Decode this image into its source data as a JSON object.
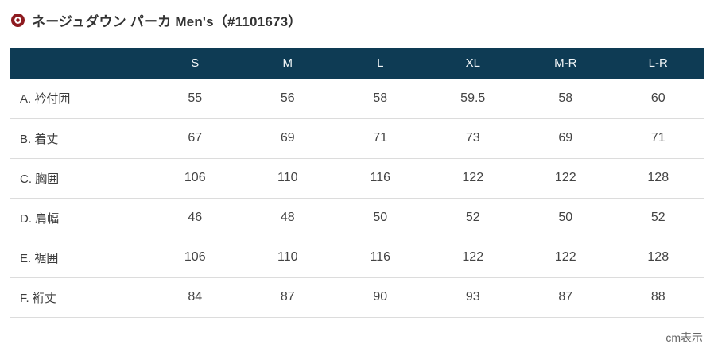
{
  "page": {
    "title": "ネージュダウン パーカ Men's（#1101673）",
    "unit_note": "cm表示"
  },
  "colors": {
    "header_bg": "#0e3b54",
    "header_text": "#f2f6f8",
    "accent_red": "#8e1b20",
    "row_border": "#dcdcdc",
    "body_text": "#444444"
  },
  "size_table": {
    "columns": [
      "S",
      "M",
      "L",
      "XL",
      "M-R",
      "L-R"
    ],
    "rows": [
      {
        "label": "A. 衿付囲",
        "values": [
          "55",
          "56",
          "58",
          "59.5",
          "58",
          "60"
        ]
      },
      {
        "label": "B. 着丈",
        "values": [
          "67",
          "69",
          "71",
          "73",
          "69",
          "71"
        ]
      },
      {
        "label": "C. 胸囲",
        "values": [
          "106",
          "110",
          "116",
          "122",
          "122",
          "128"
        ]
      },
      {
        "label": "D. 肩幅",
        "values": [
          "46",
          "48",
          "50",
          "52",
          "50",
          "52"
        ]
      },
      {
        "label": "E. 裾囲",
        "values": [
          "106",
          "110",
          "116",
          "122",
          "122",
          "128"
        ]
      },
      {
        "label": "F. 裄丈",
        "values": [
          "84",
          "87",
          "90",
          "93",
          "87",
          "88"
        ]
      }
    ]
  }
}
